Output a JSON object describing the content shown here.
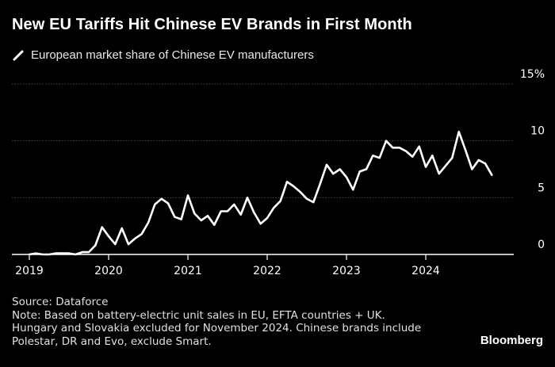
{
  "title": "New EU Tariffs Hit Chinese EV Brands in First Month",
  "legend": {
    "label": "European market share of Chinese EV manufacturers"
  },
  "footer": {
    "source": "Source: Dataforce",
    "note_lines": [
      "Note: Based on battery-electric unit sales in EU, EFTA countries + UK.",
      "Hungary and Slovakia excluded for November 2024. Chinese brands include",
      "Polestar, DR and Evo, exclude Smart."
    ]
  },
  "brand": "Bloomberg",
  "colors": {
    "background": "#000000",
    "line": "#ffffff",
    "grid": "#4a4a4a",
    "text": "#ffffff"
  },
  "chart_data": {
    "type": "line",
    "ylim": [
      0,
      15
    ],
    "xlim": [
      "2019-01",
      "2024-12"
    ],
    "y_ticks": [
      {
        "value": 0,
        "label": "0"
      },
      {
        "value": 5,
        "label": "5"
      },
      {
        "value": 10,
        "label": "10"
      },
      {
        "value": 15,
        "label": "15%"
      }
    ],
    "x_ticks": [
      {
        "value": "2019-01",
        "label": "2019"
      },
      {
        "value": "2020-01",
        "label": "2020"
      },
      {
        "value": "2021-01",
        "label": "2021"
      },
      {
        "value": "2022-01",
        "label": "2022"
      },
      {
        "value": "2023-01",
        "label": "2023"
      },
      {
        "value": "2024-01",
        "label": "2024"
      }
    ],
    "grid": true,
    "legend_position": "top-left",
    "series": [
      {
        "name": "European market share of Chinese EV manufacturers",
        "x": [
          "2019-01",
          "2019-02",
          "2019-03",
          "2019-04",
          "2019-05",
          "2019-06",
          "2019-07",
          "2019-08",
          "2019-09",
          "2019-10",
          "2019-11",
          "2019-12",
          "2020-01",
          "2020-02",
          "2020-03",
          "2020-04",
          "2020-05",
          "2020-06",
          "2020-07",
          "2020-08",
          "2020-09",
          "2020-10",
          "2020-11",
          "2020-12",
          "2021-01",
          "2021-02",
          "2021-03",
          "2021-04",
          "2021-05",
          "2021-06",
          "2021-07",
          "2021-08",
          "2021-09",
          "2021-10",
          "2021-11",
          "2021-12",
          "2022-01",
          "2022-02",
          "2022-03",
          "2022-04",
          "2022-05",
          "2022-06",
          "2022-07",
          "2022-08",
          "2022-09",
          "2022-10",
          "2022-11",
          "2022-12",
          "2023-01",
          "2023-02",
          "2023-03",
          "2023-04",
          "2023-05",
          "2023-06",
          "2023-07",
          "2023-08",
          "2023-09",
          "2023-10",
          "2023-11",
          "2023-12",
          "2024-01",
          "2024-02",
          "2024-03",
          "2024-04",
          "2024-05",
          "2024-06",
          "2024-07",
          "2024-08",
          "2024-09",
          "2024-10",
          "2024-11"
        ],
        "y": [
          0,
          0.1,
          0,
          0,
          0.1,
          0.1,
          0.1,
          0,
          0.2,
          0.2,
          0.8,
          2.4,
          1.6,
          0.9,
          2.3,
          0.9,
          1.4,
          1.8,
          2.8,
          4.4,
          4.9,
          4.5,
          3.3,
          3.1,
          5.2,
          3.6,
          3.0,
          3.4,
          2.6,
          3.8,
          3.8,
          4.4,
          3.5,
          5.0,
          3.7,
          2.7,
          3.2,
          4.1,
          4.7,
          6.4,
          6.0,
          5.5,
          4.9,
          4.6,
          6.2,
          7.9,
          7.1,
          7.5,
          6.8,
          5.7,
          7.3,
          7.5,
          8.7,
          8.5,
          10.0,
          9.4,
          9.4,
          9.1,
          8.6,
          9.5,
          7.7,
          8.7,
          7.1,
          7.8,
          8.5,
          10.8,
          9.2,
          7.5,
          8.3,
          8.0,
          7.0
        ]
      }
    ]
  }
}
